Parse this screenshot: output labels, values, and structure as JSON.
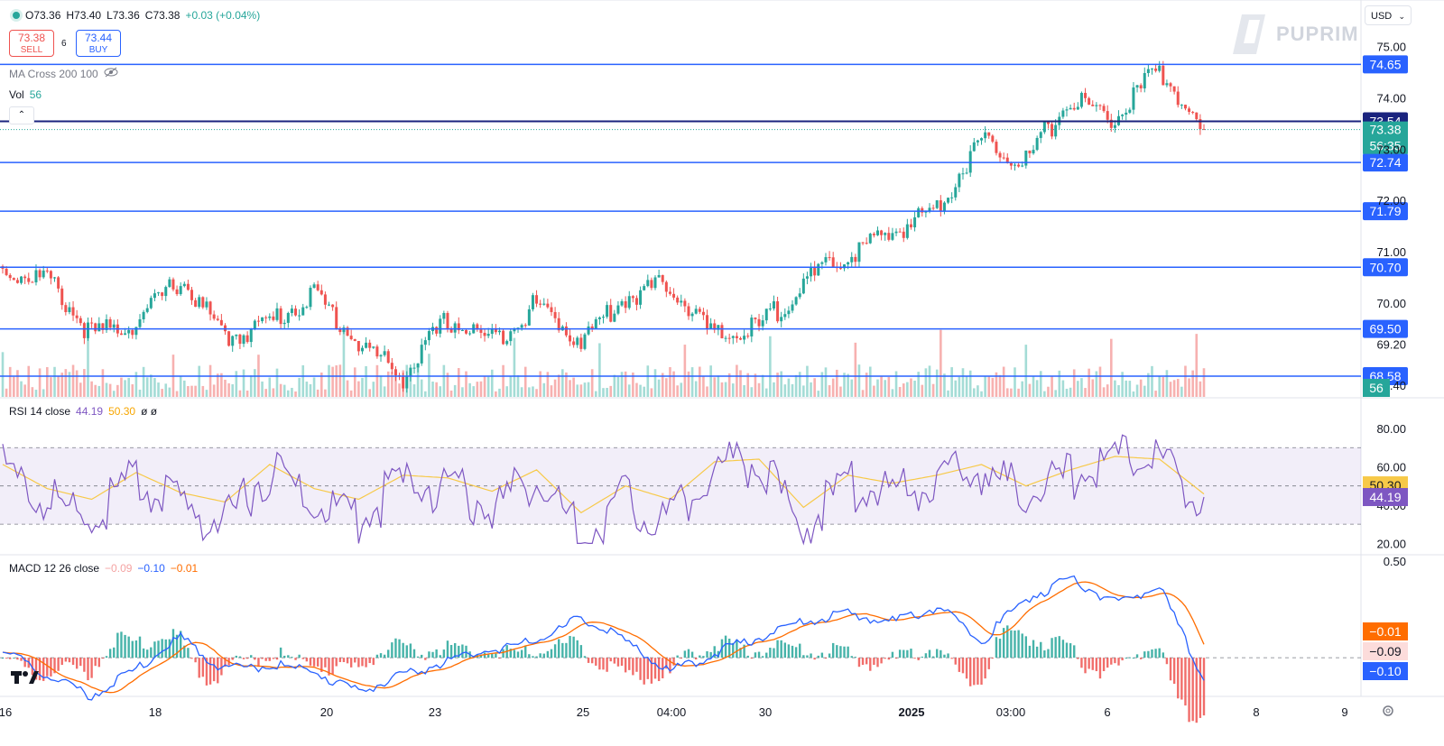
{
  "ohlc": {
    "o": "O73.36",
    "h": "H73.40",
    "l": "L73.36",
    "c": "C73.38",
    "chg": "+0.03 (+0.04%)"
  },
  "trade": {
    "sell_price": "73.38",
    "sell_label": "SELL",
    "spread": "6",
    "buy_price": "73.44",
    "buy_label": "BUY"
  },
  "indicators": {
    "ma_label": "MA Cross 200 100",
    "vol_label": "Vol",
    "vol_value": "56",
    "rsi_label": "RSI 14 close",
    "rsi_value": "44.19",
    "rsi_ma_value": "50.30",
    "rsi_extra": "ø ø",
    "macd_label": "MACD 12 26 close",
    "macd_hist": "−0.09",
    "macd_line": "−0.10",
    "macd_signal": "−0.01"
  },
  "currency": "USD",
  "watermark": "PUPRIM",
  "colors": {
    "up": "#26a69a",
    "down": "#ef5350",
    "hline": "#2962ff",
    "rsi": "#7e57c2",
    "rsi_ma": "#f7c948",
    "macd": "#2962ff",
    "signal": "#ff6d00"
  },
  "chart_data": [
    {
      "type": "candlestick",
      "price_range": [
        68.0,
        75.2
      ],
      "price_ticks": [
        "75.00",
        "74.00",
        "73.00",
        "72.00",
        "71.00",
        "70.00",
        "69.20",
        "68.40"
      ],
      "x_labels": [
        "16",
        "18",
        "20",
        "23",
        "25",
        "04:00",
        "30",
        "2025",
        "03:00",
        "6",
        "8",
        "9"
      ],
      "candles_ohlc_every_12th": [
        [
          70.85,
          70.9,
          70.7,
          70.75
        ],
        [
          70.55,
          70.7,
          70.45,
          70.6
        ],
        [
          69.6,
          69.75,
          69.2,
          69.5
        ],
        [
          69.7,
          69.85,
          69.6,
          69.75
        ],
        [
          70.4,
          70.8,
          70.3,
          70.6
        ],
        [
          69.4,
          69.55,
          69.3,
          69.45
        ],
        [
          69.8,
          69.9,
          69.6,
          69.75
        ],
        [
          70.25,
          70.5,
          70.1,
          70.3
        ],
        [
          69.3,
          69.5,
          69.15,
          69.35
        ],
        [
          68.85,
          69.1,
          68.6,
          68.7
        ],
        [
          69.7,
          69.95,
          69.6,
          69.8
        ],
        [
          69.5,
          69.65,
          69.3,
          69.4
        ],
        [
          70.0,
          70.2,
          69.85,
          70.1
        ],
        [
          69.3,
          69.5,
          69.2,
          69.4
        ],
        [
          70.15,
          70.4,
          70.05,
          70.25
        ],
        [
          70.6,
          70.75,
          70.4,
          70.5
        ],
        [
          69.6,
          69.7,
          69.3,
          69.45
        ],
        [
          69.6,
          69.75,
          69.5,
          69.65
        ],
        [
          70.55,
          70.7,
          70.4,
          70.5
        ],
        [
          71.0,
          71.2,
          70.8,
          71.05
        ],
        [
          71.55,
          71.7,
          71.35,
          71.5
        ],
        [
          72.05,
          72.2,
          71.85,
          72.0
        ],
        [
          73.4,
          73.6,
          73.2,
          73.3
        ],
        [
          73.0,
          73.1,
          72.8,
          72.9
        ],
        [
          74.05,
          74.3,
          73.9,
          74.1
        ],
        [
          73.8,
          73.9,
          73.6,
          73.7
        ],
        [
          74.5,
          74.95,
          74.3,
          74.7
        ],
        [
          73.4,
          73.45,
          73.3,
          73.38
        ]
      ],
      "horizontal_lines": [
        {
          "label": "74.65",
          "value": 74.65
        },
        {
          "label": "73.54",
          "value": 73.54,
          "dark": true
        },
        {
          "label": "72.74",
          "value": 72.74
        },
        {
          "label": "71.79",
          "value": 71.79
        },
        {
          "label": "70.70",
          "value": 70.7
        },
        {
          "label": "69.50",
          "value": 69.5
        },
        {
          "label": "68.58",
          "value": 68.58
        }
      ],
      "last_price_label": "73.38",
      "countdown": "56:35",
      "volume_label": "56"
    },
    {
      "type": "line",
      "name": "RSI 14 close",
      "y_range": [
        15,
        88
      ],
      "y_ticks": [
        "80.00",
        "60.00",
        "40.00",
        "20.00"
      ],
      "band": [
        30,
        70
      ],
      "rsi_every_12th": [
        66,
        48,
        40,
        60,
        45,
        38,
        66,
        48,
        40,
        58,
        56,
        46,
        62,
        30,
        50,
        40,
        68,
        70,
        34,
        58,
        52,
        58,
        66,
        50,
        62,
        72,
        70,
        44
      ],
      "value_labels": [
        "50.30",
        "44.19"
      ]
    },
    {
      "type": "line",
      "name": "MACD 12 26 close",
      "y_range": [
        -0.2,
        0.5
      ],
      "y_ticks": [
        "0.50"
      ],
      "macd_every_12th": [
        0.05,
        -0.08,
        -0.18,
        -0.05,
        0.12,
        -0.05,
        -0.02,
        -0.06,
        -0.16,
        -0.08,
        0.0,
        0.06,
        0.1,
        0.22,
        0.1,
        -0.06,
        0.04,
        0.12,
        0.2,
        0.24,
        0.2,
        0.28,
        0.1,
        0.32,
        0.42,
        0.3,
        0.38,
        -0.1
      ],
      "value_labels": [
        "−0.01",
        "−0.09",
        "−0.10"
      ]
    }
  ]
}
